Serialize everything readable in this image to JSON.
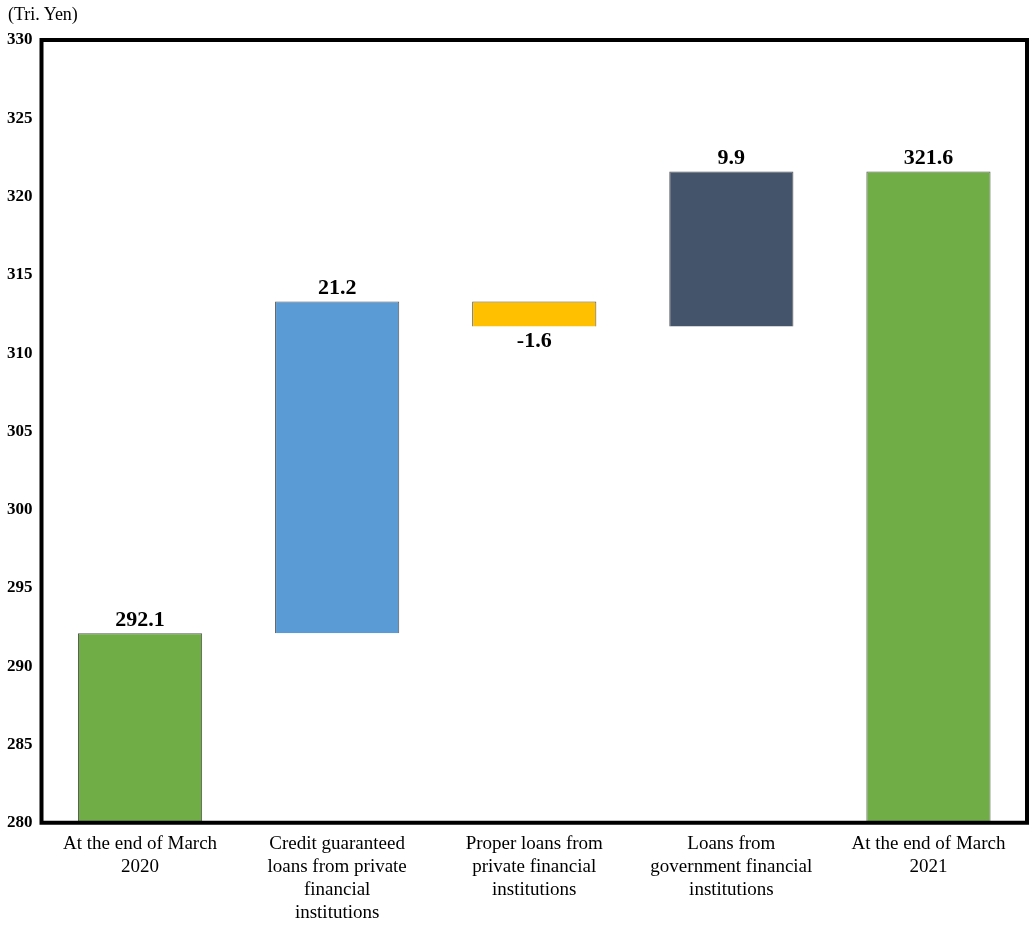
{
  "chart_data": {
    "type": "bar",
    "ylabel": "(Tri. Yen)",
    "categories": [
      "At the end of March 2020",
      "Credit guaranteed loans from private financial institutions",
      "Proper loans from private financial institutions",
      "Loans from government financial institutions",
      "At the end of March 2021"
    ],
    "values": [
      292.1,
      21.2,
      -1.6,
      9.9,
      321.6
    ],
    "base": [
      null,
      292.1,
      313.3,
      311.7,
      null
    ],
    "colors": [
      "#70ad47",
      "#5b9bd5",
      "#ffc000",
      "#44546a",
      "#70ad47"
    ],
    "ylim": [
      280,
      330
    ],
    "yticks": [
      280,
      285,
      290,
      295,
      300,
      305,
      310,
      315,
      320,
      325,
      330
    ],
    "data_labels": true,
    "grid": false,
    "legend": false
  }
}
